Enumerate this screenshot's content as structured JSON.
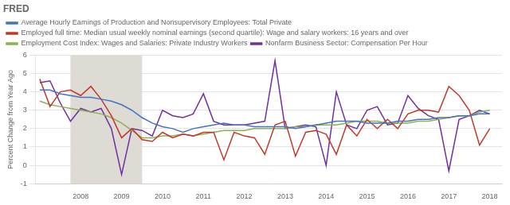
{
  "chart_data": {
    "type": "line",
    "title": "FRED",
    "ylabel": "Percent Change from Year Ago",
    "x": [
      2007.0,
      2007.25,
      2007.5,
      2007.75,
      2008.0,
      2008.25,
      2008.5,
      2008.75,
      2009.0,
      2009.25,
      2009.5,
      2009.75,
      2010.0,
      2010.25,
      2010.5,
      2010.75,
      2011.0,
      2011.25,
      2011.5,
      2011.75,
      2012.0,
      2012.25,
      2012.5,
      2012.75,
      2013.0,
      2013.25,
      2013.5,
      2013.75,
      2014.0,
      2014.25,
      2014.5,
      2014.75,
      2015.0,
      2015.25,
      2015.5,
      2015.75,
      2016.0,
      2016.25,
      2016.5,
      2016.75,
      2017.0,
      2017.25,
      2017.5,
      2017.75,
      2018.0
    ],
    "series": [
      {
        "name": "Average Hourly Earnings of Production and Nonsupervisory Employees: Total Private",
        "color": "#4472c4",
        "values": [
          4.1,
          4.1,
          3.9,
          3.8,
          3.7,
          3.7,
          3.6,
          3.5,
          3.3,
          3.0,
          2.6,
          2.3,
          2.1,
          2.0,
          1.8,
          2.0,
          2.1,
          2.2,
          2.3,
          2.2,
          2.2,
          2.1,
          2.1,
          2.1,
          2.1,
          2.0,
          2.1,
          2.2,
          2.3,
          2.4,
          2.4,
          2.4,
          2.3,
          2.3,
          2.3,
          2.4,
          2.4,
          2.5,
          2.5,
          2.6,
          2.6,
          2.7,
          2.7,
          2.8,
          2.8
        ]
      },
      {
        "name": "Employed full time: Median usual weekly nominal earnings (second quartile): Wage and salary workers: 16 years and over",
        "color": "#c0392b",
        "values": [
          4.7,
          3.2,
          4.0,
          4.1,
          3.8,
          4.3,
          3.6,
          2.7,
          1.5,
          2.0,
          1.4,
          1.3,
          1.8,
          1.5,
          1.7,
          1.6,
          1.8,
          1.8,
          0.3,
          1.8,
          1.6,
          1.5,
          0.6,
          2.2,
          2.4,
          0.5,
          1.8,
          1.9,
          1.7,
          0.6,
          2.2,
          1.6,
          2.5,
          2.0,
          2.5,
          2.0,
          2.8,
          3.0,
          3.0,
          2.9,
          4.3,
          3.8,
          3.0,
          1.1,
          2.0
        ]
      },
      {
        "name": "Employment Cost Index: Wages and Salaries: Private Industry Workers",
        "color": "#8db050",
        "values": [
          3.5,
          3.3,
          3.2,
          3.1,
          3.0,
          2.9,
          2.8,
          2.6,
          2.3,
          1.9,
          1.5,
          1.5,
          1.6,
          1.6,
          1.7,
          1.6,
          1.7,
          1.8,
          1.9,
          1.9,
          1.9,
          2.0,
          2.0,
          2.0,
          2.0,
          2.1,
          2.1,
          2.2,
          2.2,
          2.2,
          2.3,
          2.4,
          2.4,
          2.4,
          2.3,
          2.3,
          2.3,
          2.4,
          2.4,
          2.5,
          2.6,
          2.7,
          2.7,
          2.9,
          3.0
        ]
      },
      {
        "name": "Nonfarm Business Sector: Compensation Per Hour",
        "color": "#7030a0",
        "values": [
          4.5,
          4.6,
          3.4,
          2.4,
          3.1,
          2.9,
          3.1,
          2.0,
          -0.5,
          2.0,
          1.9,
          1.6,
          3.0,
          2.7,
          2.6,
          2.8,
          3.9,
          2.4,
          2.2,
          2.2,
          2.2,
          2.3,
          2.4,
          5.7,
          2.0,
          2.1,
          2.2,
          2.1,
          0.0,
          4.0,
          2.2,
          2.0,
          3.0,
          3.2,
          2.2,
          2.3,
          3.8,
          3.1,
          2.7,
          2.5,
          -0.3,
          2.5,
          2.7,
          3.0,
          2.8
        ]
      }
    ],
    "xlim": [
      2006.9,
      2018.3
    ],
    "xticks": [
      2008,
      2009,
      2010,
      2011,
      2012,
      2013,
      2014,
      2015,
      2016,
      2017,
      2018
    ],
    "ylim": [
      -1,
      6
    ],
    "yticks": [
      -1,
      0,
      1,
      2,
      3,
      4,
      5,
      6
    ],
    "grid": "y",
    "legend": "top",
    "shade": {
      "range": [
        2007.75,
        2009.5
      ],
      "color": "#dedad4"
    }
  }
}
